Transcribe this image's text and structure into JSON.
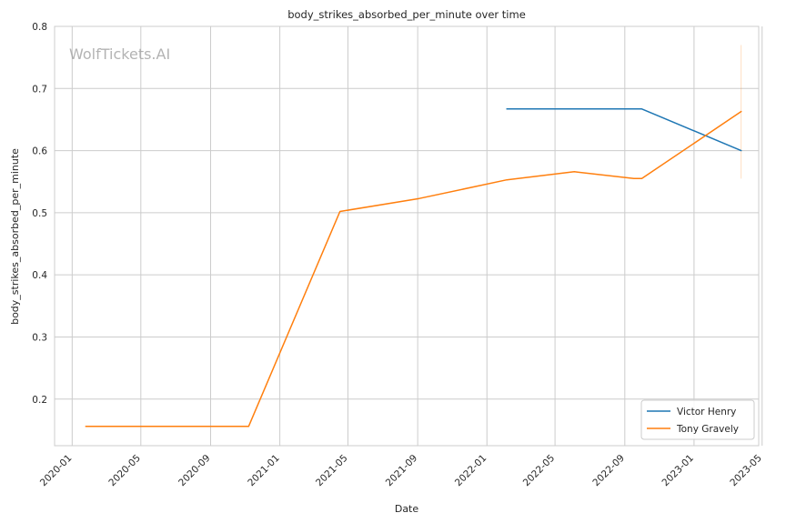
{
  "chart_data": {
    "type": "line",
    "title": "body_strikes_absorbed_per_minute over time",
    "xlabel": "Date",
    "ylabel": "body_strikes_absorbed_per_minute",
    "watermark": "WolfTickets.AI",
    "x_axis_type": "date",
    "xlim": [
      "2019-12-01",
      "2023-04-25"
    ],
    "ylim": [
      0.125,
      0.8
    ],
    "x_ticks": [
      "2020-01",
      "2020-05",
      "2020-09",
      "2021-01",
      "2021-05",
      "2021-09",
      "2022-01",
      "2022-05",
      "2022-09",
      "2023-01",
      "2023-05"
    ],
    "y_ticks": [
      "0.2",
      "0.3",
      "0.4",
      "0.5",
      "0.6",
      "0.7",
      "0.8"
    ],
    "grid": true,
    "legend_position": "bottom-right",
    "series": [
      {
        "name": "Victor Henry",
        "color": "#1f77b4",
        "points": [
          {
            "x": "2022-02-05",
            "y": 0.667
          },
          {
            "x": "2022-10-01",
            "y": 0.667
          },
          {
            "x": "2023-03-25",
            "y": 0.6
          }
        ]
      },
      {
        "name": "Tony Gravely",
        "color": "#ff7f0e",
        "points": [
          {
            "x": "2020-01-25",
            "y": 0.156
          },
          {
            "x": "2020-11-07",
            "y": 0.156
          },
          {
            "x": "2021-04-17",
            "y": 0.502
          },
          {
            "x": "2021-09-04",
            "y": 0.523
          },
          {
            "x": "2022-02-05",
            "y": 0.553
          },
          {
            "x": "2022-06-04",
            "y": 0.566
          },
          {
            "x": "2022-09-17",
            "y": 0.555
          },
          {
            "x": "2022-10-01",
            "y": 0.555
          },
          {
            "x": "2023-03-25",
            "y": 0.663
          }
        ],
        "error_bar": {
          "x": "2023-03-25",
          "low": 0.555,
          "high": 0.77
        }
      }
    ]
  }
}
